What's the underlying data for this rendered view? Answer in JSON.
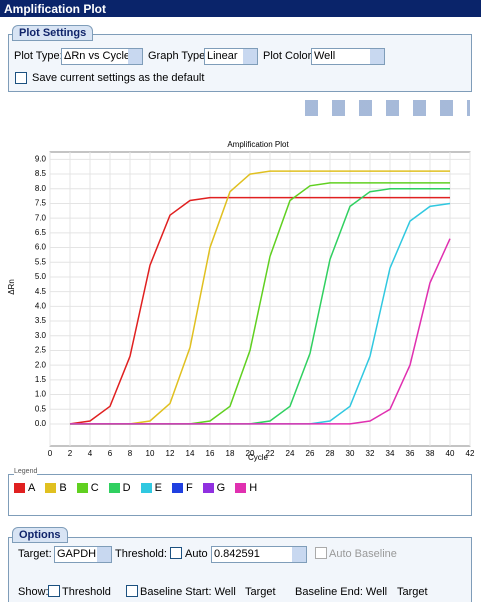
{
  "window_title": "Amplification Plot",
  "plot_settings": {
    "title": "Plot Settings",
    "plot_type_label": "Plot Type:",
    "plot_type": "ΔRn vs Cycle",
    "graph_type_label": "Graph Type:",
    "graph_type": "Linear",
    "plot_color_label": "Plot Color:",
    "plot_color": "Well",
    "save_default": "Save current settings as the default"
  },
  "chart_data": {
    "type": "line",
    "title": "Amplification Plot",
    "x_label": "Cycle",
    "y_label": "ΔRn",
    "x": [
      2,
      4,
      6,
      8,
      10,
      12,
      14,
      16,
      18,
      20,
      22,
      24,
      26,
      28,
      30,
      32,
      34,
      36,
      38,
      40
    ],
    "series": [
      {
        "name": "A",
        "color": "#e02020",
        "values": [
          0.0,
          0.1,
          0.6,
          2.3,
          5.4,
          7.1,
          7.6,
          7.7,
          7.7,
          7.7,
          7.7,
          7.7,
          7.7,
          7.7,
          7.7,
          7.7,
          7.7,
          7.7,
          7.7,
          7.7
        ]
      },
      {
        "name": "B",
        "color": "#e0c020",
        "values": [
          0,
          0,
          0,
          0.0,
          0.1,
          0.7,
          2.6,
          6.0,
          7.9,
          8.5,
          8.6,
          8.6,
          8.6,
          8.6,
          8.6,
          8.6,
          8.6,
          8.6,
          8.6,
          8.6
        ]
      },
      {
        "name": "C",
        "color": "#60d020",
        "values": [
          0,
          0,
          0,
          0,
          0,
          0,
          0.0,
          0.1,
          0.6,
          2.5,
          5.7,
          7.6,
          8.1,
          8.2,
          8.2,
          8.2,
          8.2,
          8.2,
          8.2,
          8.2
        ]
      },
      {
        "name": "D",
        "color": "#30d060",
        "values": [
          0,
          0,
          0,
          0,
          0,
          0,
          0,
          0,
          0,
          0.0,
          0.1,
          0.6,
          2.4,
          5.6,
          7.4,
          7.9,
          8.0,
          8.0,
          8.0,
          8.0
        ]
      },
      {
        "name": "E",
        "color": "#30c8e0",
        "values": [
          0,
          0,
          0,
          0,
          0,
          0,
          0,
          0,
          0,
          0,
          0,
          0,
          0.0,
          0.1,
          0.6,
          2.3,
          5.3,
          6.9,
          7.4,
          7.5
        ]
      },
      {
        "name": "F",
        "color": "#2040e0",
        "values": [
          null,
          null,
          null,
          null,
          null,
          null,
          null,
          null,
          null,
          null,
          null,
          null,
          null,
          null,
          null,
          null,
          null,
          null,
          null,
          null
        ]
      },
      {
        "name": "G",
        "color": "#9030e0",
        "values": [
          null,
          null,
          null,
          null,
          null,
          null,
          null,
          null,
          null,
          null,
          null,
          null,
          null,
          null,
          null,
          null,
          null,
          null,
          null,
          null
        ]
      },
      {
        "name": "H",
        "color": "#e030b0",
        "values": [
          0,
          0,
          0,
          0,
          0,
          0,
          0,
          0,
          0,
          0,
          0,
          0,
          0,
          0,
          0.0,
          0.1,
          0.5,
          2.0,
          4.8,
          6.3
        ]
      }
    ],
    "xlim": [
      0,
      42
    ],
    "xticks": [
      0,
      2,
      4,
      6,
      8,
      10,
      12,
      14,
      16,
      18,
      20,
      22,
      24,
      26,
      28,
      30,
      32,
      34,
      36,
      38,
      40,
      42
    ],
    "ylim": [
      -0.75,
      9.25
    ],
    "yticks": [
      {
        "value": 0,
        "label": "0.0"
      },
      0.5,
      {
        "value": 1,
        "label": "1.0"
      },
      1.5,
      {
        "value": 2,
        "label": "2.0"
      },
      2.5,
      {
        "value": 3,
        "label": "3.0"
      },
      3.5,
      {
        "value": 4,
        "label": "4.0"
      },
      4.5,
      {
        "value": 5,
        "label": "5.0"
      },
      5.5,
      {
        "value": 6,
        "label": "6.0"
      },
      6.5,
      {
        "value": 7,
        "label": "7.0"
      },
      7.5,
      {
        "value": 8,
        "label": "8.0"
      },
      8.5,
      {
        "value": 9,
        "label": "9.0"
      }
    ],
    "grid": true,
    "legend_title": "Legend"
  },
  "options": {
    "title": "Options",
    "target_label": "Target:",
    "target": "GAPDH",
    "threshold_label": "Threshold:",
    "auto": "Auto",
    "threshold_value": "0.842591",
    "auto_baseline": "Auto Baseline",
    "show_label": "Show:",
    "threshold": "Threshold",
    "baseline_start": "Baseline Start: Well",
    "target_a": "Target",
    "baseline_end": "Baseline End: Well",
    "target_b": "Target"
  }
}
